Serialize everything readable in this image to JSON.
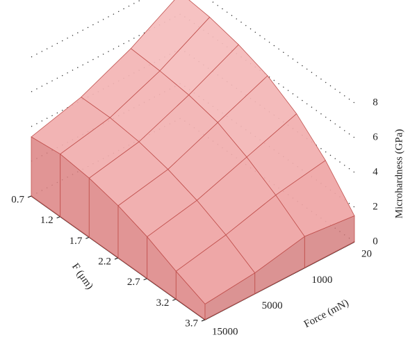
{
  "chart_data": {
    "type": "surface",
    "x_label": "F (μm)",
    "y_label": "Force (mN)",
    "z_label": "Microhardness (GPa)",
    "x": [
      0.7,
      1.2,
      1.7,
      2.2,
      2.7,
      3.2,
      3.7
    ],
    "xlim": [
      0.7,
      3.7
    ],
    "categories": [
      "20",
      "1000",
      "5000",
      "15000"
    ],
    "z": [
      [
        7.2,
        7.0,
        6.6,
        6.0,
        5.0,
        3.5,
        1.5
      ],
      [
        5.5,
        5.4,
        5.2,
        4.8,
        4.0,
        3.0,
        1.8
      ],
      [
        4.2,
        4.2,
        4.0,
        3.6,
        3.0,
        2.2,
        1.2
      ],
      [
        3.4,
        3.6,
        3.4,
        3.0,
        2.4,
        1.6,
        0.9
      ]
    ],
    "zlim": [
      0,
      8
    ],
    "zticks": [
      0,
      2,
      4,
      6,
      8
    ],
    "color": "#f2a9a9",
    "edge_color": "#c0504d"
  }
}
